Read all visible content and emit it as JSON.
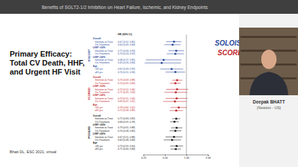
{
  "chart_data": {
    "type": "forest",
    "header": "Benefits of SGLT2-1/2 Inhibition on Heart Failure, Ischemic, and Kidney Endpoints",
    "title": [
      "Primary Efficacy:",
      "Total CV Death, HHF,",
      "and Urgent HF Visit"
    ],
    "source": "Bhatt DL, ESC 2021, virtual",
    "speaker_name": "Deepak BHATT",
    "speaker_location": "(Newton - US)",
    "logos": [
      {
        "text": "SOLOIST",
        "color": "#2b4a9a"
      },
      {
        "text": "SCORED",
        "color": "#c0272d"
      }
    ],
    "column_header": "HR (95% CI)",
    "log": "x",
    "marker": "square",
    "xlim": [
      0.25,
      2
    ],
    "xticks": [
      0.25,
      {
        "value": 0.5,
        "label": "0.50"
      },
      {
        "value": 1,
        "label": "1.00"
      },
      {
        "value": 2,
        "label": "2.00"
      }
    ],
    "null_value": 1,
    "groups": [
      {
        "name": "SOLOIST",
        "color": "#2b4a9a",
        "rows": [
          {
            "label": "Overall"
          },
          {
            "label": "Intention-to-Treat",
            "estimate": 0.67,
            "lower": 0.52,
            "upper": 0.85,
            "text": "0.67 (0.52, 0.85)"
          },
          {
            "label": "On-Treatment",
            "estimate": 0.64,
            "lower": 0.49,
            "upper": 0.83,
            "text": "0.64 (0.49, 0.83)"
          },
          {
            "label": "LVEF <50%"
          },
          {
            "label": "Intention-to-Treat",
            "estimate": 0.72,
            "lower": 0.56,
            "upper": 0.93,
            "text": "0.72 (0.56, 0.93)"
          },
          {
            "label": "On-Treatment",
            "estimate": 0.7,
            "lower": 0.53,
            "upper": 0.92,
            "text": "0.70 (0.53, 0.92)"
          },
          {
            "label": "LVEF ≥50%"
          },
          {
            "label": "Intention-to-Treat",
            "estimate": 0.48,
            "lower": 0.27,
            "upper": 0.85,
            "text": "0.48 (0.27, 0.85)"
          },
          {
            "label": "On-Treatment",
            "estimate": 0.45,
            "lower": 0.26,
            "upper": 0.84,
            "text": "0.45 (0.26, 0.84)"
          },
          {
            "label": "Age"
          },
          {
            "label": "<65 yrs",
            "estimate": 0.62,
            "lower": 0.43,
            "upper": 0.9,
            "text": "0.62 (0.43, 0.90)"
          },
          {
            "label": "≥65 yrs",
            "estimate": 0.7,
            "lower": 0.51,
            "upper": 0.96,
            "text": "0.70 (0.51, 0.96)"
          }
        ]
      },
      {
        "name": "SCORED",
        "color": "#c0272d",
        "rows": [
          {
            "label": "Overall"
          },
          {
            "label": "Intention-to-Treat",
            "estimate": 0.74,
            "lower": 0.63,
            "upper": 0.88,
            "text": "0.74 (0.63, 0.88)"
          },
          {
            "label": "On-Treatment",
            "estimate": 0.7,
            "lower": 0.59,
            "upper": 0.83,
            "text": "0.70 (0.59, 0.83)"
          },
          {
            "label": "LVEF <50%"
          },
          {
            "label": "Intention-to-Treat",
            "estimate": 0.74,
            "lower": 0.52,
            "upper": 1.06,
            "text": "0.74 (0.52, 1.06)"
          },
          {
            "label": "On-Treatment",
            "estimate": 0.71,
            "lower": 0.49,
            "upper": 1.03,
            "text": "0.71 (0.49, 1.03)"
          },
          {
            "label": "LVEF ≥50%"
          },
          {
            "label": "Intention-to-Treat",
            "estimate": 0.73,
            "lower": 0.51,
            "upper": 1.04,
            "text": "0.73 (0.51, 1.04)"
          },
          {
            "label": "On-Treatment",
            "estimate": 0.69,
            "lower": 0.47,
            "upper": 1.01,
            "text": "0.69 (0.47, 1.01)"
          },
          {
            "label": "Age"
          },
          {
            "label": "<65 yrs",
            "estimate": 0.78,
            "lower": 0.6,
            "upper": 1.02,
            "text": "0.78 (0.60, 1.02)"
          },
          {
            "label": "≥65 yrs",
            "estimate": 0.72,
            "lower": 0.58,
            "upper": 0.89,
            "text": "0.72 (0.58, 0.89)"
          }
        ]
      },
      {
        "name": "POOLED",
        "color": "#222222",
        "rows": [
          {
            "label": "Overall"
          },
          {
            "label": "Intention-to-Treat",
            "estimate": 0.72,
            "lower": 0.63,
            "upper": 0.82,
            "text": "0.72 (0.63, 0.82)"
          },
          {
            "label": "On-Treatment",
            "estimate": 0.68,
            "lower": 0.59,
            "upper": 0.78,
            "text": "0.68 (0.59, 0.78)"
          },
          {
            "label": "LVEF <50%"
          },
          {
            "label": "Intention-to-Treat",
            "estimate": 0.73,
            "lower": 0.61,
            "upper": 0.88,
            "text": "0.73 (0.61, 0.88)"
          },
          {
            "label": "On-Treatment",
            "estimate": 0.7,
            "lower": 0.58,
            "upper": 0.85,
            "text": "0.70 (0.58, 0.85)"
          },
          {
            "label": "LVEF ≥50%"
          },
          {
            "label": "Intention-to-Treat",
            "estimate": 0.67,
            "lower": 0.51,
            "upper": 0.88,
            "text": "0.67 (0.51, 0.88)"
          },
          {
            "label": "On-Treatment",
            "estimate": 0.63,
            "lower": 0.48,
            "upper": 0.84,
            "text": "0.63 (0.48, 0.84)"
          },
          {
            "label": "Age"
          },
          {
            "label": "<65 yrs",
            "estimate": 0.73,
            "lower": 0.59,
            "upper": 0.9,
            "text": "0.73 (0.59, 0.90)"
          },
          {
            "label": "≥65 yrs",
            "estimate": 0.71,
            "lower": 0.6,
            "upper": 0.84,
            "text": "0.71 (0.60, 0.84)"
          }
        ]
      }
    ]
  }
}
